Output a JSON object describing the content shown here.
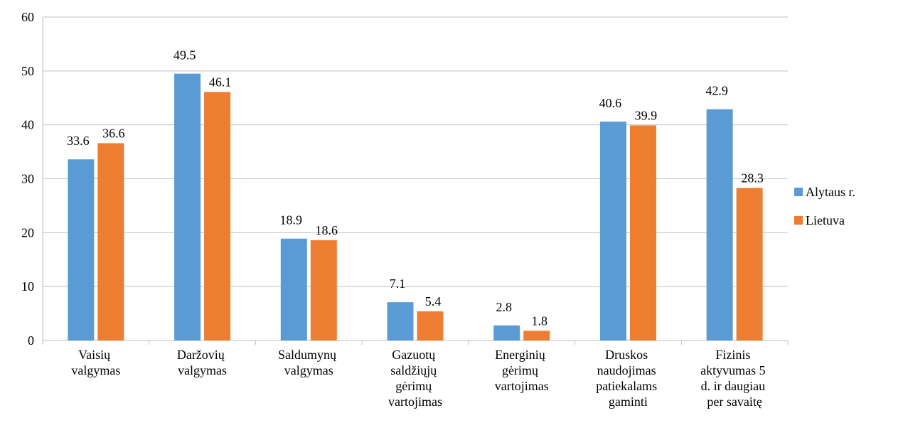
{
  "chart_data": {
    "type": "bar",
    "categories": [
      "Vaisių valgymas",
      "Daržovių valgymas",
      "Saldumynų valgymas",
      "Gazuotų saldžiųjų gėrimų vartojimas",
      "Energinių gėrimų vartojimas",
      "Druskos naudojimas patiekalams gaminti",
      "Fizinis aktyvumas 5 d. ir daugiau per savaitę"
    ],
    "series": [
      {
        "name": "Alytaus r.",
        "color": "#5b9bd5",
        "values": [
          33.6,
          49.5,
          18.9,
          7.1,
          2.8,
          40.6,
          42.9
        ]
      },
      {
        "name": "Lietuva",
        "color": "#ed7d31",
        "values": [
          36.6,
          46.1,
          18.6,
          5.4,
          1.8,
          39.9,
          28.3
        ]
      }
    ],
    "ylim": [
      0,
      60
    ],
    "yticks": [
      0,
      10,
      20,
      30,
      40,
      50,
      60
    ],
    "grid": true,
    "legend": "right"
  }
}
